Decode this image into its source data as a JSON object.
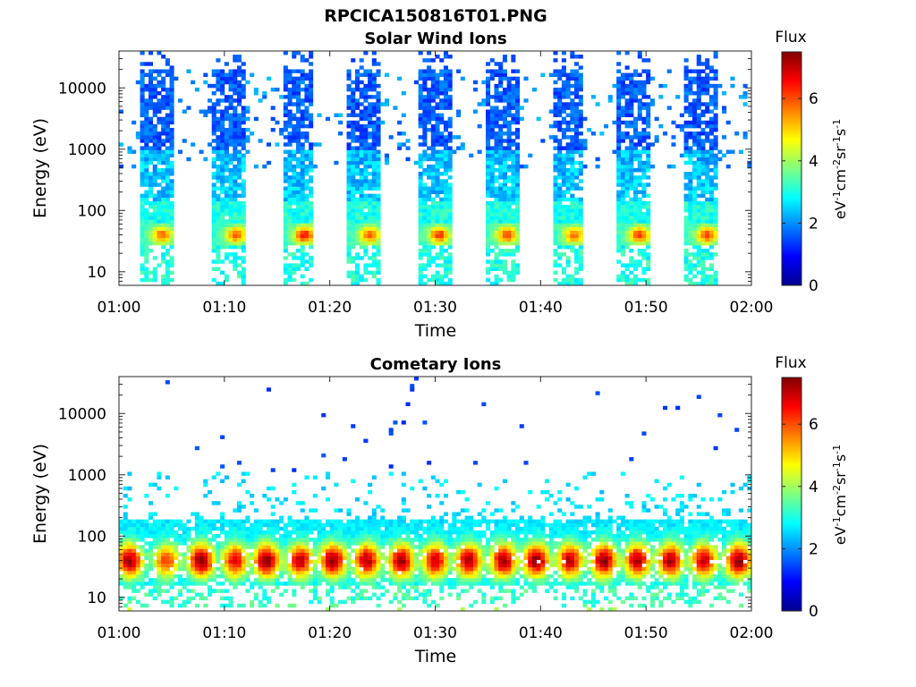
{
  "figure": {
    "filename_title": "RPCICA150816T01.PNG"
  },
  "panels": [
    {
      "title": "Solar Wind Ions",
      "xlabel": "Time",
      "ylabel": "Energy (eV)",
      "colorbar": {
        "title": "Flux",
        "label": "eV-1cm-2sr-1s-1",
        "ticks": [
          "0",
          "2",
          "4",
          "6"
        ]
      }
    },
    {
      "title": "Cometary Ions",
      "xlabel": "Time",
      "ylabel": "Energy (eV)",
      "colorbar": {
        "title": "Flux",
        "label": "eV-1cm-2sr-1s-1",
        "ticks": [
          "0",
          "2",
          "4",
          "6"
        ]
      }
    }
  ],
  "chart_data": [
    {
      "type": "heatmap",
      "title": "Solar Wind Ions",
      "xlabel": "Time",
      "ylabel": "Energy (eV)",
      "xlim": [
        "01:00",
        "02:00"
      ],
      "x_ticks": [
        "01:00",
        "01:10",
        "01:20",
        "01:30",
        "01:40",
        "01:50",
        "02:00"
      ],
      "ylim": [
        6,
        40000
      ],
      "y_scale": "log",
      "y_ticks": [
        10,
        100,
        1000,
        10000
      ],
      "y_tick_labels": [
        "10",
        "100",
        "1000",
        "10000"
      ],
      "color_range": [
        0,
        7.5
      ],
      "colormap": "jet",
      "colorbar_ticks": [
        0,
        2,
        4,
        6
      ],
      "features": [
        {
          "kind": "burst",
          "center_minute": 3.5,
          "halfwidth_minute": 1.6,
          "peak_energy_eV": 40,
          "peak_value": 5.6
        },
        {
          "kind": "burst",
          "center_minute": 10.5,
          "halfwidth_minute": 1.5,
          "peak_energy_eV": 40,
          "peak_value": 5.8
        },
        {
          "kind": "burst",
          "center_minute": 17.0,
          "halfwidth_minute": 1.6,
          "peak_energy_eV": 40,
          "peak_value": 6.3
        },
        {
          "kind": "burst",
          "center_minute": 23.2,
          "halfwidth_minute": 1.6,
          "peak_energy_eV": 40,
          "peak_value": 5.8
        },
        {
          "kind": "burst",
          "center_minute": 29.8,
          "halfwidth_minute": 1.6,
          "peak_energy_eV": 40,
          "peak_value": 6.0
        },
        {
          "kind": "burst",
          "center_minute": 36.2,
          "halfwidth_minute": 1.6,
          "peak_energy_eV": 40,
          "peak_value": 5.9
        },
        {
          "kind": "burst",
          "center_minute": 42.6,
          "halfwidth_minute": 1.6,
          "peak_energy_eV": 40,
          "peak_value": 5.6
        },
        {
          "kind": "burst",
          "center_minute": 48.8,
          "halfwidth_minute": 1.6,
          "peak_energy_eV": 40,
          "peak_value": 6.0
        },
        {
          "kind": "burst",
          "center_minute": 55.2,
          "halfwidth_minute": 1.6,
          "peak_energy_eV": 40,
          "peak_value": 6.0
        }
      ]
    },
    {
      "type": "heatmap",
      "title": "Cometary Ions",
      "xlabel": "Time",
      "ylabel": "Energy (eV)",
      "xlim": [
        "01:00",
        "02:00"
      ],
      "x_ticks": [
        "01:00",
        "01:10",
        "01:20",
        "01:30",
        "01:40",
        "01:50",
        "02:00"
      ],
      "ylim": [
        6,
        40000
      ],
      "y_scale": "log",
      "y_ticks": [
        10,
        100,
        1000,
        10000
      ],
      "y_tick_labels": [
        "10",
        "100",
        "1000",
        "10000"
      ],
      "color_range": [
        0,
        7.5
      ],
      "colormap": "jet",
      "colorbar_ticks": [
        0,
        2,
        4,
        6
      ],
      "features": [
        {
          "kind": "blob",
          "center_minute": 1.0,
          "peak_energy_eV": 40,
          "peak_value": 7.0
        },
        {
          "kind": "blob",
          "center_minute": 4.5,
          "peak_energy_eV": 40,
          "peak_value": 6.0
        },
        {
          "kind": "blob",
          "center_minute": 7.8,
          "peak_energy_eV": 40,
          "peak_value": 7.2
        },
        {
          "kind": "blob",
          "center_minute": 11.0,
          "peak_energy_eV": 40,
          "peak_value": 6.5
        },
        {
          "kind": "blob",
          "center_minute": 14.0,
          "peak_energy_eV": 40,
          "peak_value": 7.2
        },
        {
          "kind": "blob",
          "center_minute": 17.2,
          "peak_energy_eV": 40,
          "peak_value": 6.8
        },
        {
          "kind": "blob",
          "center_minute": 20.3,
          "peak_energy_eV": 40,
          "peak_value": 7.2
        },
        {
          "kind": "blob",
          "center_minute": 23.5,
          "peak_energy_eV": 40,
          "peak_value": 7.0
        },
        {
          "kind": "blob",
          "center_minute": 26.8,
          "peak_energy_eV": 40,
          "peak_value": 7.0
        },
        {
          "kind": "blob",
          "center_minute": 30.0,
          "peak_energy_eV": 40,
          "peak_value": 6.8
        },
        {
          "kind": "blob",
          "center_minute": 33.2,
          "peak_energy_eV": 40,
          "peak_value": 7.0
        },
        {
          "kind": "blob",
          "center_minute": 36.5,
          "peak_energy_eV": 40,
          "peak_value": 7.0
        },
        {
          "kind": "blob",
          "center_minute": 39.6,
          "peak_energy_eV": 40,
          "peak_value": 7.2
        },
        {
          "kind": "blob",
          "center_minute": 42.8,
          "peak_energy_eV": 40,
          "peak_value": 6.8
        },
        {
          "kind": "blob",
          "center_minute": 46.0,
          "peak_energy_eV": 40,
          "peak_value": 7.2
        },
        {
          "kind": "blob",
          "center_minute": 49.2,
          "peak_energy_eV": 40,
          "peak_value": 7.0
        },
        {
          "kind": "blob",
          "center_minute": 52.3,
          "peak_energy_eV": 40,
          "peak_value": 7.0
        },
        {
          "kind": "blob",
          "center_minute": 55.5,
          "peak_energy_eV": 40,
          "peak_value": 6.8
        },
        {
          "kind": "blob",
          "center_minute": 58.8,
          "peak_energy_eV": 40,
          "peak_value": 7.2
        }
      ]
    }
  ]
}
